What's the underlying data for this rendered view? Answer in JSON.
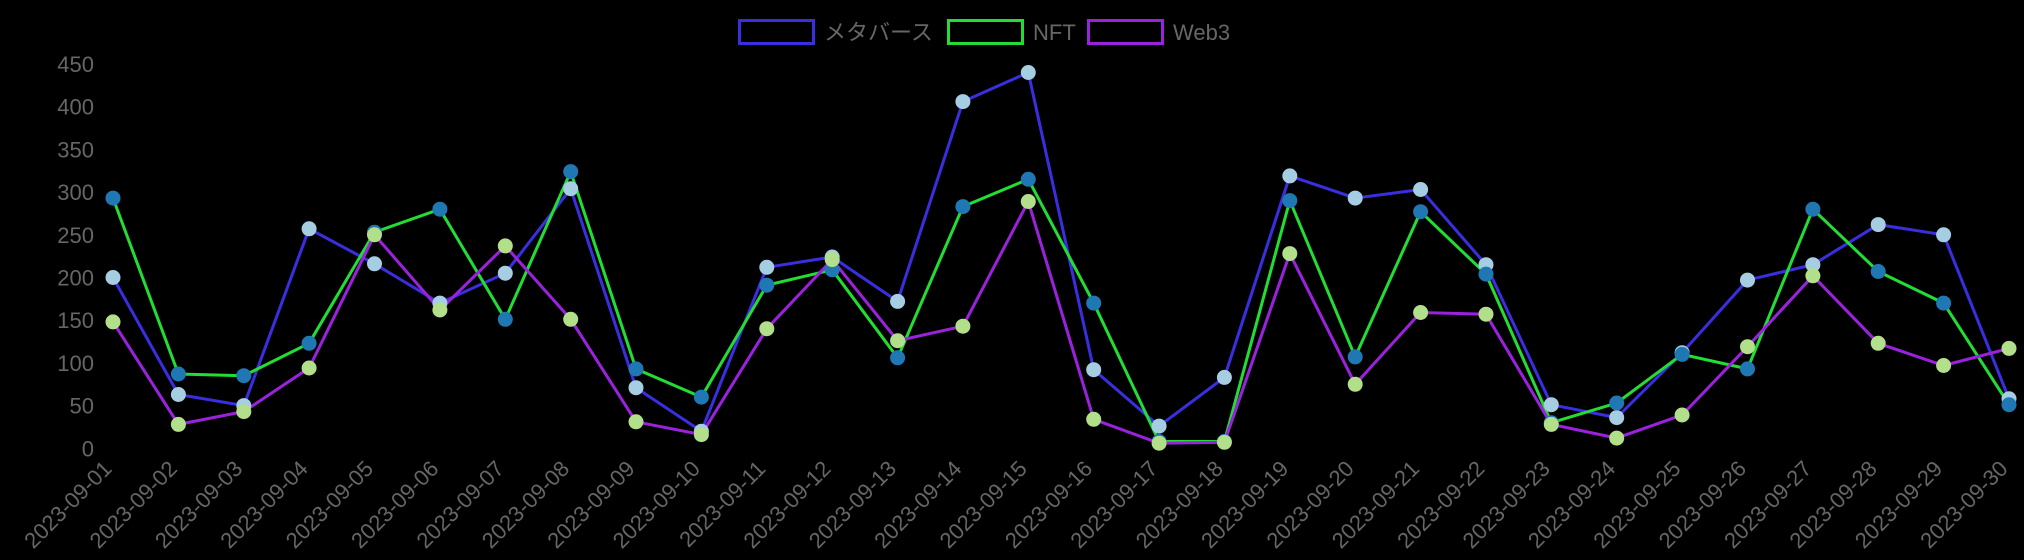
{
  "chart_data": {
    "type": "line",
    "title": "",
    "xlabel": "",
    "ylabel": "",
    "ylim": [
      0,
      450
    ],
    "yticks": [
      0,
      50,
      100,
      150,
      200,
      250,
      300,
      350,
      400,
      450
    ],
    "grid": false,
    "legend_position": "top",
    "categories": [
      "2023-09-01",
      "2023-09-02",
      "2023-09-03",
      "2023-09-04",
      "2023-09-05",
      "2023-09-06",
      "2023-09-07",
      "2023-09-08",
      "2023-09-09",
      "2023-09-10",
      "2023-09-11",
      "2023-09-12",
      "2023-09-13",
      "2023-09-14",
      "2023-09-15",
      "2023-09-16",
      "2023-09-17",
      "2023-09-18",
      "2023-09-19",
      "2023-09-20",
      "2023-09-21",
      "2023-09-22",
      "2023-09-23",
      "2023-09-24",
      "2023-09-25",
      "2023-09-26",
      "2023-09-27",
      "2023-09-28",
      "2023-09-29",
      "2023-09-30"
    ],
    "series": [
      {
        "name": "メタバース",
        "line_color": "#3a2ee0",
        "point_color": "#a6cee3",
        "values": [
          200,
          63,
          50,
          257,
          216,
          170,
          205,
          304,
          71,
          20,
          212,
          224,
          172,
          406,
          440,
          92,
          26,
          83,
          319,
          293,
          303,
          215,
          51,
          36,
          112,
          197,
          215,
          262,
          250,
          58
        ]
      },
      {
        "name": "NFT",
        "line_color": "#22dd33",
        "point_color": "#1f78b4",
        "values": [
          293,
          87,
          85,
          123,
          253,
          280,
          151,
          324,
          93,
          60,
          191,
          209,
          106,
          283,
          315,
          170,
          8,
          8,
          290,
          107,
          277,
          204,
          30,
          53,
          110,
          93,
          280,
          207,
          170,
          51
        ]
      },
      {
        "name": "Web3",
        "line_color": "#9b22dd",
        "point_color": "#b2df8a",
        "values": [
          148,
          28,
          43,
          94,
          250,
          162,
          237,
          151,
          31,
          16,
          140,
          221,
          126,
          143,
          289,
          34,
          6,
          7,
          228,
          75,
          159,
          157,
          28,
          12,
          39,
          119,
          202,
          123,
          97,
          117
        ]
      }
    ]
  },
  "legend": {
    "items": [
      {
        "label": "メタバース",
        "color": "#3a2ee0"
      },
      {
        "label": "NFT",
        "color": "#22dd33"
      },
      {
        "label": "Web3",
        "color": "#9b22dd"
      }
    ]
  }
}
